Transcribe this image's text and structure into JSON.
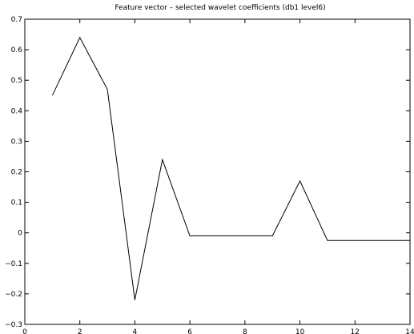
{
  "chart_data": {
    "type": "line",
    "title": "Feature vector – selected wavelet coefficients (db1 level6)",
    "xlabel": "",
    "ylabel": "",
    "xlim": [
      0,
      14
    ],
    "ylim": [
      -0.3,
      0.7
    ],
    "xticks": [
      0,
      2,
      4,
      6,
      8,
      10,
      12,
      14
    ],
    "yticks": [
      -0.3,
      -0.2,
      -0.1,
      0,
      0.1,
      0.2,
      0.3,
      0.4,
      0.5,
      0.6,
      0.7
    ],
    "xtick_labels": [
      "0",
      "2",
      "4",
      "6",
      "8",
      "10",
      "12",
      "14"
    ],
    "ytick_labels": [
      "−0.3",
      "−0.2",
      "−0.1",
      "0",
      "0.1",
      "0.2",
      "0.3",
      "0.4",
      "0.5",
      "0.6",
      "0.7"
    ],
    "grid": false,
    "series": [
      {
        "x": [
          1,
          2,
          3,
          4,
          5,
          6,
          7,
          8,
          9,
          10,
          11,
          12,
          13,
          14
        ],
        "y": [
          0.45,
          0.64,
          0.47,
          -0.22,
          0.24,
          -0.01,
          -0.01,
          -0.01,
          -0.01,
          0.17,
          -0.025,
          -0.025,
          -0.025,
          -0.025
        ]
      }
    ]
  }
}
